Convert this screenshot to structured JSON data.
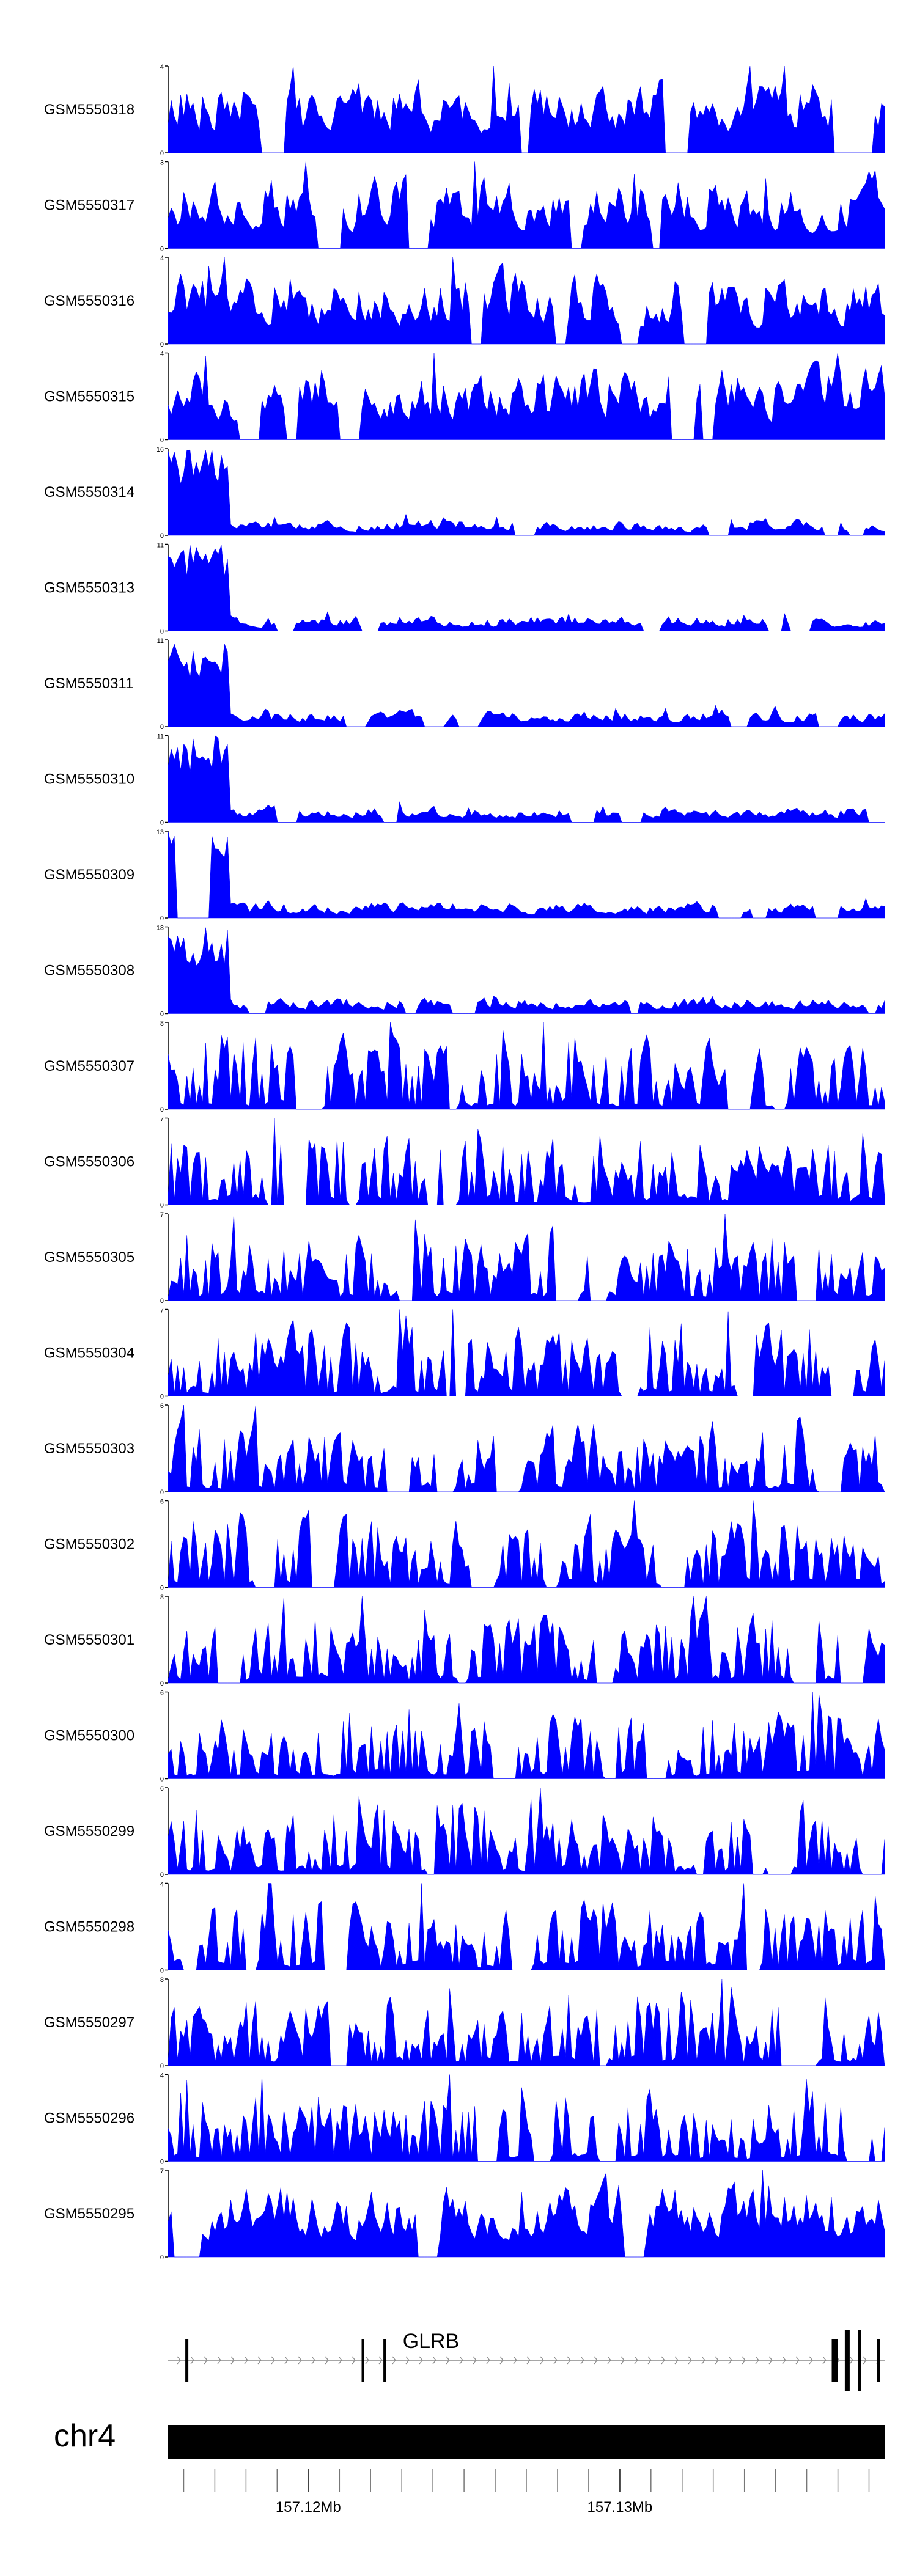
{
  "chart_data": {
    "type": "area",
    "title": "",
    "xlabel": "",
    "ylabel": "",
    "x_range_mb": [
      157.1155,
      157.1385
    ],
    "color": "#0000ff",
    "tracks": [
      {
        "name": "GSM5550318",
        "ymax": "4",
        "ymin": "0",
        "max": 4
      },
      {
        "name": "GSM5550317",
        "ymax": "3",
        "ymin": "0",
        "max": 3
      },
      {
        "name": "GSM5550316",
        "ymax": "4",
        "ymin": "0",
        "max": 4
      },
      {
        "name": "GSM5550315",
        "ymax": "4",
        "ymin": "0",
        "max": 4
      },
      {
        "name": "GSM5550314",
        "ymax": "16",
        "ymin": "0",
        "max": 16
      },
      {
        "name": "GSM5550313",
        "ymax": "11",
        "ymin": "0",
        "max": 11
      },
      {
        "name": "GSM5550311",
        "ymax": "11",
        "ymin": "0",
        "max": 11
      },
      {
        "name": "GSM5550310",
        "ymax": "11",
        "ymin": "0",
        "max": 11
      },
      {
        "name": "GSM5550309",
        "ymax": "13",
        "ymin": "0",
        "max": 13
      },
      {
        "name": "GSM5550308",
        "ymax": "18",
        "ymin": "0",
        "max": 18
      },
      {
        "name": "GSM5550307",
        "ymax": "8",
        "ymin": "0",
        "max": 8
      },
      {
        "name": "GSM5550306",
        "ymax": "7",
        "ymin": "0",
        "max": 7
      },
      {
        "name": "GSM5550305",
        "ymax": "7",
        "ymin": "0",
        "max": 7
      },
      {
        "name": "GSM5550304",
        "ymax": "7",
        "ymin": "0",
        "max": 7
      },
      {
        "name": "GSM5550303",
        "ymax": "6",
        "ymin": "0",
        "max": 6
      },
      {
        "name": "GSM5550302",
        "ymax": "6",
        "ymin": "0",
        "max": 6
      },
      {
        "name": "GSM5550301",
        "ymax": "8",
        "ymin": "0",
        "max": 8
      },
      {
        "name": "GSM5550300",
        "ymax": "6",
        "ymin": "0",
        "max": 6
      },
      {
        "name": "GSM5550299",
        "ymax": "6",
        "ymin": "0",
        "max": 6
      },
      {
        "name": "GSM5550298",
        "ymax": "4",
        "ymin": "0",
        "max": 4
      },
      {
        "name": "GSM5550297",
        "ymax": "8",
        "ymin": "0",
        "max": 8
      },
      {
        "name": "GSM5550296",
        "ymax": "4",
        "ymin": "0",
        "max": 4
      },
      {
        "name": "GSM5550295",
        "ymax": "7",
        "ymin": "0",
        "max": 7
      }
    ],
    "gene": {
      "name": "GLRB",
      "strand": "+",
      "exons_mb": [
        157.1161,
        157.12175,
        157.12245,
        157.1369,
        157.1373,
        157.1377,
        157.1383
      ]
    },
    "chromosome": "chr4",
    "ticks": [
      {
        "pos": 157.12,
        "label": "157.12Mb"
      },
      {
        "pos": 157.13,
        "label": "157.13Mb"
      }
    ]
  }
}
